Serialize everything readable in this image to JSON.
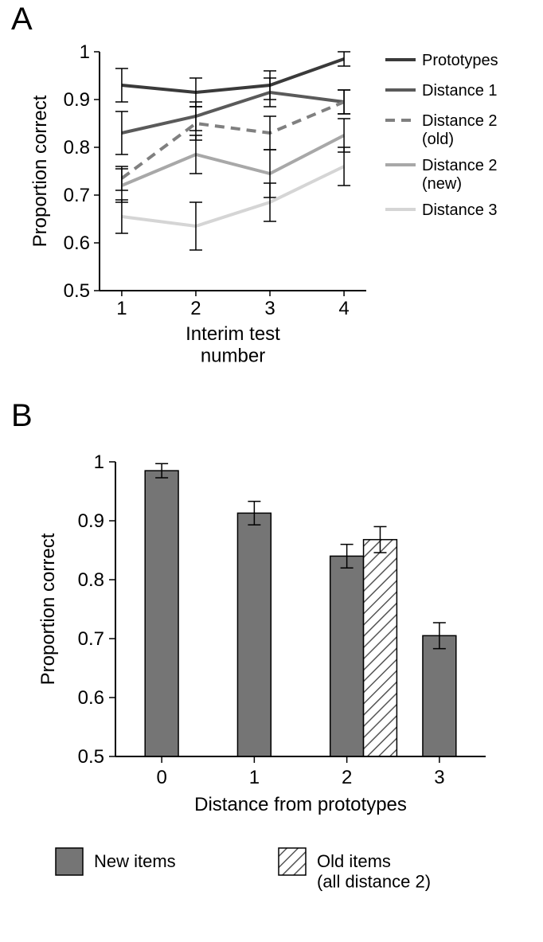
{
  "panelA": {
    "label": "A",
    "label_fontsize": 40,
    "chart": {
      "type": "line",
      "xlabel": "Interim test\nnumber",
      "ylabel": "Proportion correct",
      "label_fontsize": 24,
      "tick_fontsize": 24,
      "xlim": [
        0.7,
        4.3
      ],
      "ylim": [
        0.5,
        1.0
      ],
      "xticks": [
        1,
        2,
        3,
        4
      ],
      "yticks": [
        0.5,
        0.6,
        0.7,
        0.8,
        0.9,
        1.0
      ],
      "ytick_labels": [
        "0.5",
        "0.6",
        "0.7",
        "0.8",
        "0.9",
        "1"
      ],
      "axis_color": "#000000",
      "background_color": "#ffffff",
      "line_width": 4,
      "error_cap_width": 8,
      "error_line_width": 1.5,
      "legend_fontsize": 20,
      "series": [
        {
          "name": "Prototypes",
          "color": "#3a3a3a",
          "dash": "",
          "x": [
            1,
            2,
            3,
            4
          ],
          "y": [
            0.93,
            0.915,
            0.93,
            0.985
          ],
          "err": [
            0.035,
            0.03,
            0.03,
            0.015
          ]
        },
        {
          "name": "Distance 1",
          "color": "#5a5a5a",
          "dash": "",
          "x": [
            1,
            2,
            3,
            4
          ],
          "y": [
            0.83,
            0.865,
            0.915,
            0.895
          ],
          "err": [
            0.045,
            0.03,
            0.03,
            0.025
          ]
        },
        {
          "name": "Distance 2\n(old)",
          "color": "#808080",
          "dash": "12,8",
          "x": [
            1,
            2,
            3,
            4
          ],
          "y": [
            0.735,
            0.85,
            0.83,
            0.895
          ],
          "err": [
            0.025,
            0.035,
            0.035,
            0.025
          ]
        },
        {
          "name": "Distance 2\n(new)",
          "color": "#a8a8a8",
          "dash": "",
          "x": [
            1,
            2,
            3,
            4
          ],
          "y": [
            0.72,
            0.785,
            0.745,
            0.825
          ],
          "err": [
            0.035,
            0.04,
            0.05,
            0.035
          ]
        },
        {
          "name": "Distance 3",
          "color": "#d5d5d5",
          "dash": "",
          "x": [
            1,
            2,
            3,
            4
          ],
          "y": [
            0.655,
            0.635,
            0.685,
            0.76
          ],
          "err": [
            0.035,
            0.05,
            0.04,
            0.04
          ]
        }
      ]
    }
  },
  "panelB": {
    "label": "B",
    "label_fontsize": 40,
    "chart": {
      "type": "bar",
      "xlabel": "Distance from prototypes",
      "ylabel": "Proportion correct",
      "label_fontsize": 24,
      "tick_fontsize": 24,
      "xlim": [
        -0.5,
        3.5
      ],
      "ylim": [
        0.5,
        1.0
      ],
      "xticks": [
        0,
        1,
        2,
        3
      ],
      "yticks": [
        0.5,
        0.6,
        0.7,
        0.8,
        0.9,
        1.0
      ],
      "ytick_labels": [
        "0.5",
        "0.6",
        "0.7",
        "0.8",
        "0.9",
        "1"
      ],
      "axis_color": "#000000",
      "background_color": "#ffffff",
      "bar_width": 0.36,
      "error_cap_width": 8,
      "error_line_width": 1.5,
      "bars": [
        {
          "x": -0.18,
          "y": 0.985,
          "err": 0.012,
          "fill": "#757575",
          "stroke": "#000000",
          "hatched": false
        },
        {
          "x": 0.82,
          "y": 0.913,
          "err": 0.02,
          "fill": "#757575",
          "stroke": "#000000",
          "hatched": false
        },
        {
          "x": 1.82,
          "y": 0.84,
          "err": 0.02,
          "fill": "#757575",
          "stroke": "#000000",
          "hatched": false
        },
        {
          "x": 2.18,
          "y": 0.868,
          "err": 0.022,
          "fill": "#ffffff",
          "stroke": "#000000",
          "hatched": true
        },
        {
          "x": 2.82,
          "y": 0.705,
          "err": 0.022,
          "fill": "#757575",
          "stroke": "#000000",
          "hatched": false
        }
      ],
      "legend": {
        "fontsize": 22,
        "items": [
          {
            "label": "New items",
            "fill": "#757575",
            "stroke": "#000000",
            "hatched": false
          },
          {
            "label": "Old items\n(all distance 2)",
            "fill": "#ffffff",
            "stroke": "#000000",
            "hatched": true
          }
        ]
      }
    }
  }
}
